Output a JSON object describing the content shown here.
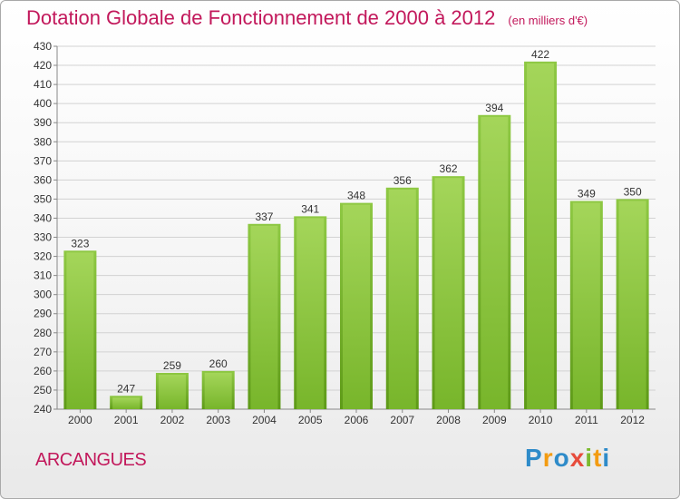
{
  "chart_data": {
    "type": "bar",
    "title": "Dotation Globale de Fonctionnement de 2000 à 2012",
    "subtitle": "(en milliers d'€)",
    "categories": [
      "2000",
      "2001",
      "2002",
      "2003",
      "2004",
      "2005",
      "2006",
      "2007",
      "2008",
      "2009",
      "2010",
      "2011",
      "2012"
    ],
    "values": [
      323,
      247,
      259,
      260,
      337,
      341,
      348,
      356,
      362,
      394,
      422,
      349,
      350
    ],
    "ylim": [
      240,
      430
    ],
    "yticks": [
      240,
      250,
      260,
      270,
      280,
      290,
      300,
      310,
      320,
      330,
      340,
      350,
      360,
      370,
      380,
      390,
      400,
      410,
      420,
      430
    ],
    "grid": true,
    "bar_color": "#7cba2e",
    "bar_color_top": "#a8d85e",
    "text_color": "#c2185b"
  },
  "footer": {
    "commune": "ARCANGUES",
    "brand_letters": [
      "P",
      "r",
      "o",
      "x",
      "i",
      "t",
      "i"
    ],
    "brand_colors": [
      "#2e8bc9",
      "#f39c12",
      "#2e8bc9",
      "#e74c3c",
      "#7cba2e",
      "#f39c12",
      "#2e8bc9"
    ]
  }
}
